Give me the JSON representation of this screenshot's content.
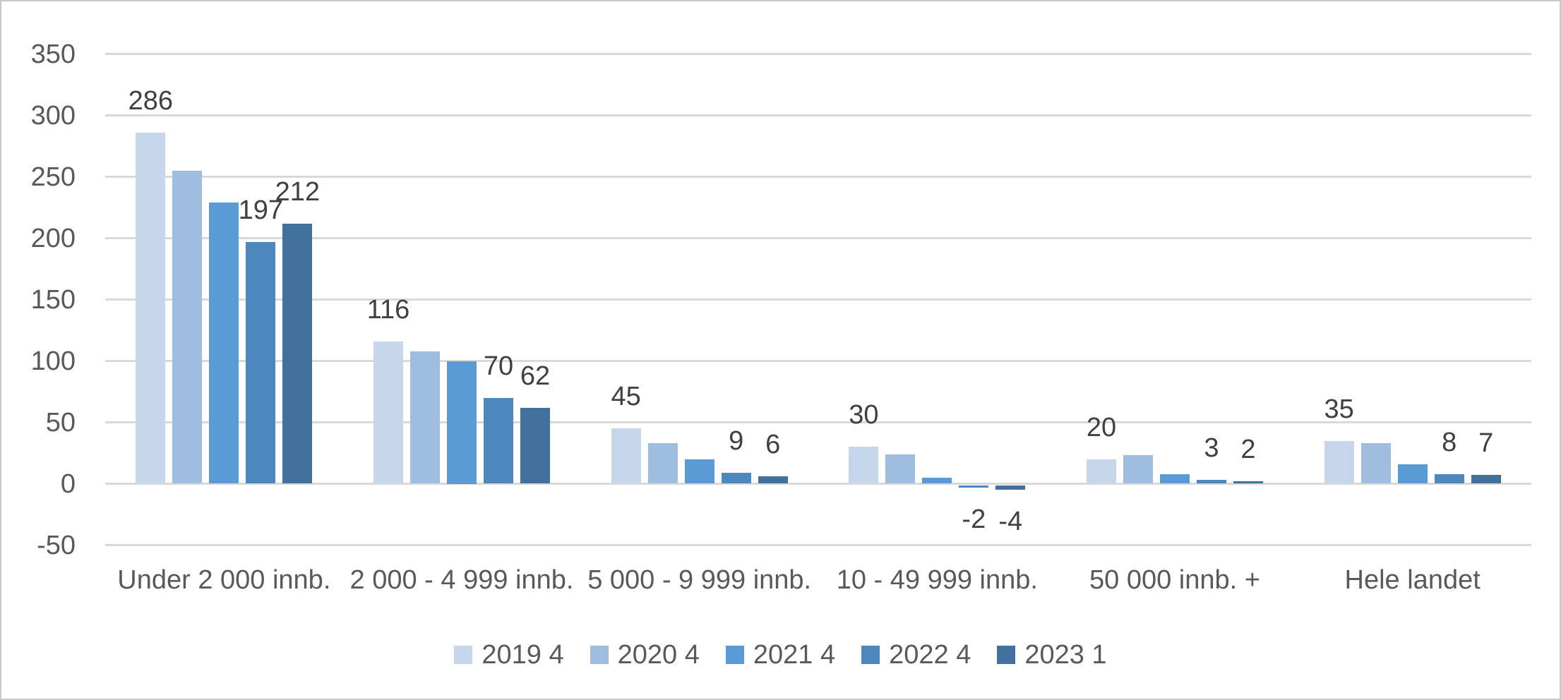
{
  "chart_data": {
    "type": "bar",
    "title": "",
    "xlabel": "",
    "ylabel": "",
    "categories": [
      "Under 2 000 innb.",
      "2 000 - 4 999 innb.",
      "5 000 - 9 999 innb.",
      "10 - 49 999 innb.",
      "50 000 innb. +",
      "Hele landet"
    ],
    "series": [
      {
        "name": "2019 4",
        "color": "#C7D7EB",
        "data_labels_visible": true,
        "values": [
          286,
          116,
          45,
          30,
          20,
          35
        ]
      },
      {
        "name": "2020 4",
        "color": "#9FBEDF",
        "data_labels_visible": false,
        "values": [
          255,
          108,
          33,
          24,
          23,
          33
        ]
      },
      {
        "name": "2021 4",
        "color": "#5B9BD5",
        "data_labels_visible": false,
        "values": [
          229,
          100,
          20,
          5,
          8,
          16
        ]
      },
      {
        "name": "2022 4",
        "color": "#4E87BD",
        "data_labels_visible": true,
        "values": [
          197,
          70,
          9,
          -2,
          3,
          8
        ]
      },
      {
        "name": "2023 1",
        "color": "#41719C",
        "data_labels_visible": true,
        "values": [
          212,
          62,
          6,
          -4,
          2,
          7
        ]
      }
    ],
    "y_axis": {
      "min": -50,
      "max": 350,
      "step": 50,
      "ticks": [
        "350",
        "300",
        "250",
        "200",
        "150",
        "100",
        "50",
        "0",
        "-50"
      ]
    },
    "legend_position": "bottom",
    "grid": true
  },
  "colors": {
    "background": "#FFFFFF",
    "frame_border": "#C9C9C9",
    "gridline": "#D9D9D9",
    "axis_text": "#595959",
    "data_label_text": "#404040"
  }
}
